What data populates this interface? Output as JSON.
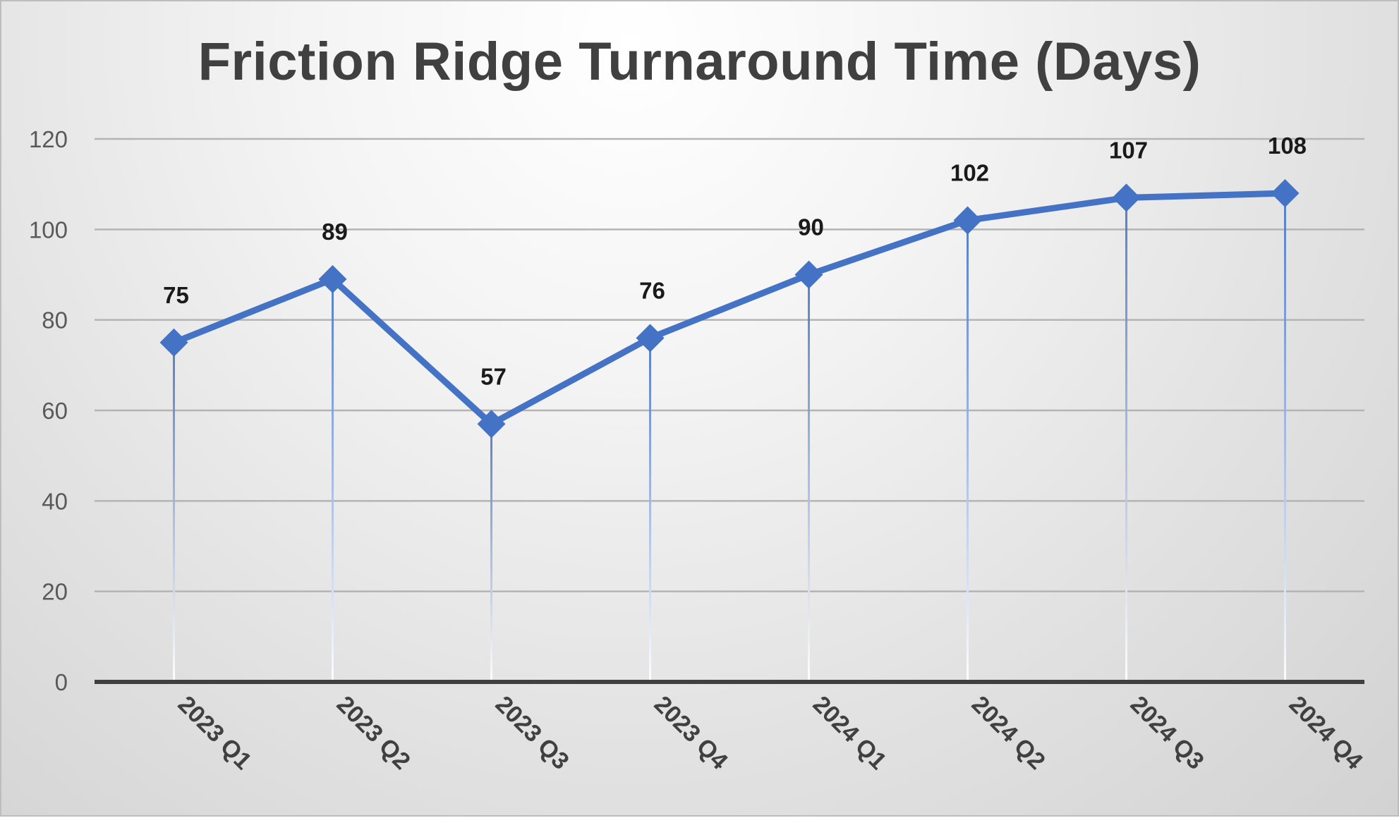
{
  "chart_data": {
    "type": "line",
    "title": "Friction Ridge Turnaround Time (Days)",
    "xlabel": "",
    "ylabel": "",
    "categories": [
      "2023 Q1",
      "2023 Q2",
      "2023 Q3",
      "2023 Q4",
      "2024 Q1",
      "2024 Q2",
      "2024 Q3",
      "2024 Q4"
    ],
    "series": [
      {
        "values": [
          75,
          89,
          57,
          76,
          90,
          102,
          107,
          108
        ],
        "color": "#4472C4"
      }
    ],
    "ylim": [
      0,
      120
    ],
    "yticks": [
      0,
      20,
      40,
      60,
      80,
      100,
      120
    ],
    "grid": true,
    "legend": "none",
    "marker": "diamond",
    "data_labels": true,
    "drop_lines": true
  }
}
